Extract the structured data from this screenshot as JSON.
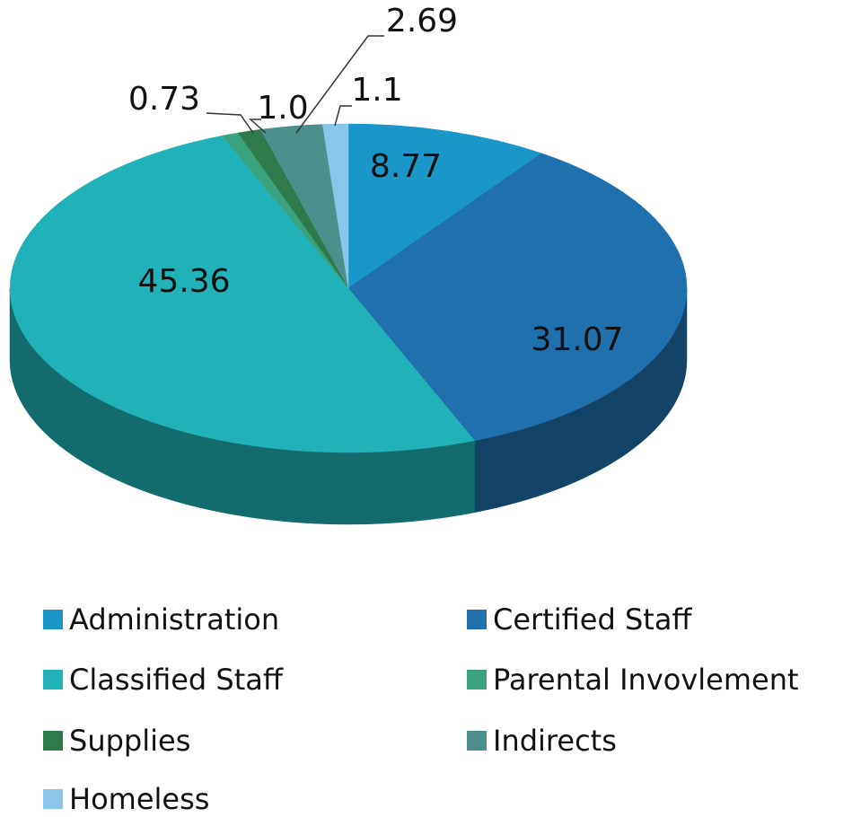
{
  "chart_data": {
    "type": "pie",
    "categories": [
      "Administration",
      "Certified Staff",
      "Classified Staff",
      "Parental Invovlement",
      "Supplies",
      "Indirects",
      "Homeless"
    ],
    "values": [
      8.77,
      31.07,
      45.36,
      0.73,
      1.0,
      2.69,
      1.1
    ],
    "value_labels": [
      "8.77",
      "31.07",
      "45.36",
      "0.73",
      "1.0",
      "2.69",
      "1.1"
    ],
    "colors": [
      "#1a96c8",
      "#2170ae",
      "#20b2b8",
      "#3aa27f",
      "#2f7a4a",
      "#4d8f8c",
      "#8ac6ea"
    ]
  }
}
